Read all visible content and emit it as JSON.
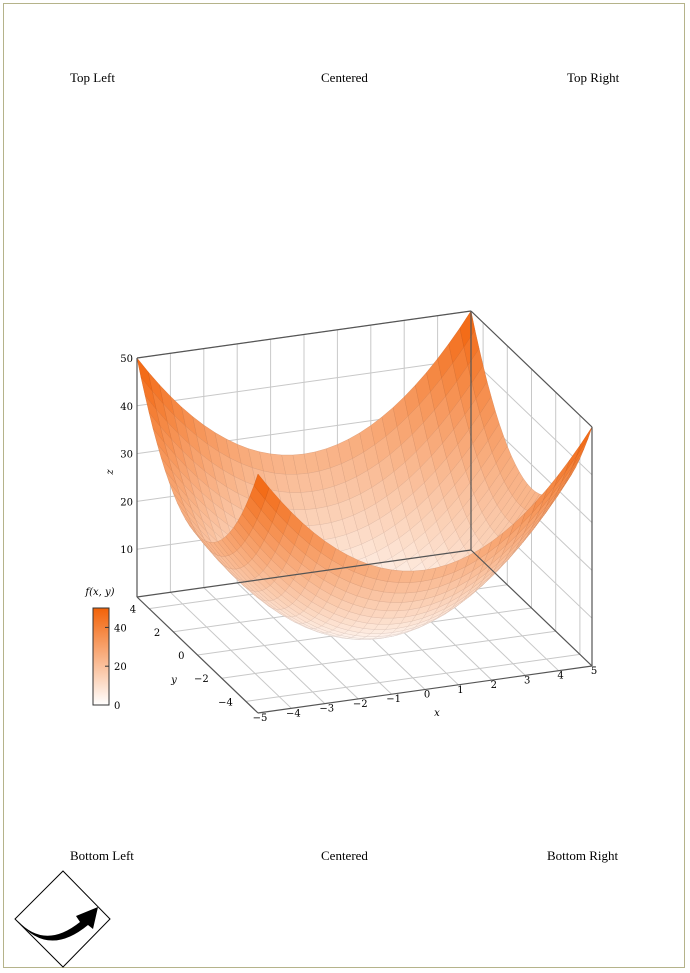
{
  "header": {
    "left": "Top Left",
    "center": "Centered",
    "right": "Top Right"
  },
  "footer": {
    "left": "Bottom Left",
    "center": "Centered",
    "right": "Bottom Right"
  },
  "colors": {
    "surface_high": "#f26208",
    "surface_low": "#ffffff",
    "grid": "#c8c8c8",
    "axis": "#555555"
  },
  "icons": {
    "corner_logo": "curved-arrow-in-diamond-icon"
  },
  "chart_data": {
    "type": "surface",
    "function": "x^2 + y^2",
    "title": "",
    "xlabel": "x",
    "ylabel": "y",
    "zlabel": "z",
    "xlim": [
      -5,
      5
    ],
    "ylim": [
      -5,
      5
    ],
    "zlim": [
      0,
      50
    ],
    "x_ticks": [
      -5,
      -4,
      -3,
      -2,
      -1,
      0,
      1,
      2,
      3,
      4,
      5
    ],
    "y_ticks": [
      -4,
      -2,
      0,
      2,
      4
    ],
    "z_ticks": [
      10,
      20,
      30,
      40,
      50
    ],
    "samples": [
      {
        "x": -5,
        "y": -5,
        "z": 50
      },
      {
        "x": 5,
        "y": -5,
        "z": 50
      },
      {
        "x": -5,
        "y": 5,
        "z": 50
      },
      {
        "x": 5,
        "y": 5,
        "z": 50
      },
      {
        "x": 0,
        "y": -5,
        "z": 25
      },
      {
        "x": 0,
        "y": 5,
        "z": 25
      },
      {
        "x": -5,
        "y": 0,
        "z": 25
      },
      {
        "x": 5,
        "y": 0,
        "z": 25
      },
      {
        "x": 0,
        "y": 0,
        "z": 0
      }
    ],
    "grid": true,
    "colorbar": {
      "label": "f(x, y)",
      "ticks": [
        0,
        20,
        40
      ],
      "range": [
        0,
        50
      ]
    }
  }
}
